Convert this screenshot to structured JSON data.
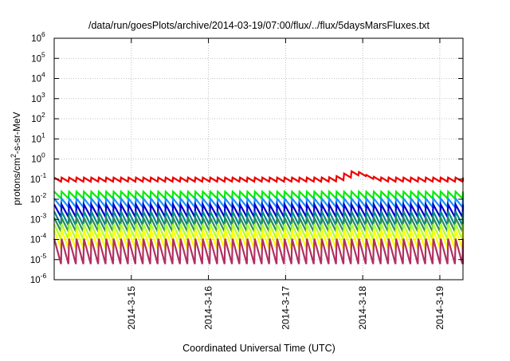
{
  "chart_data": {
    "type": "line",
    "title": "/data/run/goesPlots/archive/2014-03-19/07:00/flux/../flux/5daysMarsFluxes.txt",
    "xlabel": "Coordinated Universal Time (UTC)",
    "ylabel": "protons/cm2-s-sr-MeV",
    "yscale": "log",
    "ylim_exponent": [
      -6,
      6
    ],
    "ytick_labels": [
      {
        "base": "10",
        "exp": "-6"
      },
      {
        "base": "10",
        "exp": "-5"
      },
      {
        "base": "10",
        "exp": "-4"
      },
      {
        "base": "10",
        "exp": "-3"
      },
      {
        "base": "10",
        "exp": "-2"
      },
      {
        "base": "10",
        "exp": "-1"
      },
      {
        "base": "10",
        "exp": "0"
      },
      {
        "base": "10",
        "exp": "1"
      },
      {
        "base": "10",
        "exp": "2"
      },
      {
        "base": "10",
        "exp": "3"
      },
      {
        "base": "10",
        "exp": "4"
      },
      {
        "base": "10",
        "exp": "5"
      },
      {
        "base": "10",
        "exp": "6"
      }
    ],
    "xlim_day": [
      14.0,
      19.3
    ],
    "xticks": [
      {
        "day": 15,
        "label": "2014-3-15"
      },
      {
        "day": 16,
        "label": "2014-3-16"
      },
      {
        "day": 17,
        "label": "2014-3-17"
      },
      {
        "day": 18,
        "label": "2014-3-18"
      },
      {
        "day": 19,
        "label": "2014-3-19"
      }
    ],
    "grid": true,
    "series": [
      {
        "color": "#ee0000",
        "high": 0.12,
        "low": 0.075,
        "spike": {
          "day": 17.88,
          "value": 0.25
        }
      },
      {
        "color": "#00ee00",
        "high": 0.024,
        "low": 0.011
      },
      {
        "color": "#1e90ff",
        "high": 0.011,
        "low": 0.004
      },
      {
        "color": "#0000cc",
        "high": 0.0055,
        "low": 0.0013
      },
      {
        "color": "#008b8b",
        "high": 0.0025,
        "low": 0.0005
      },
      {
        "color": "#2e8b57",
        "high": 0.0012,
        "low": 0.00025
      },
      {
        "color": "#adff2f",
        "high": 0.0006,
        "low": 0.0001
      },
      {
        "color": "#ffff00",
        "high": 0.0003,
        "low": 3.5e-05
      },
      {
        "color": "#b03060",
        "high": 0.00011,
        "low": 6e-06
      }
    ],
    "sawtooth_cycles": 55
  }
}
